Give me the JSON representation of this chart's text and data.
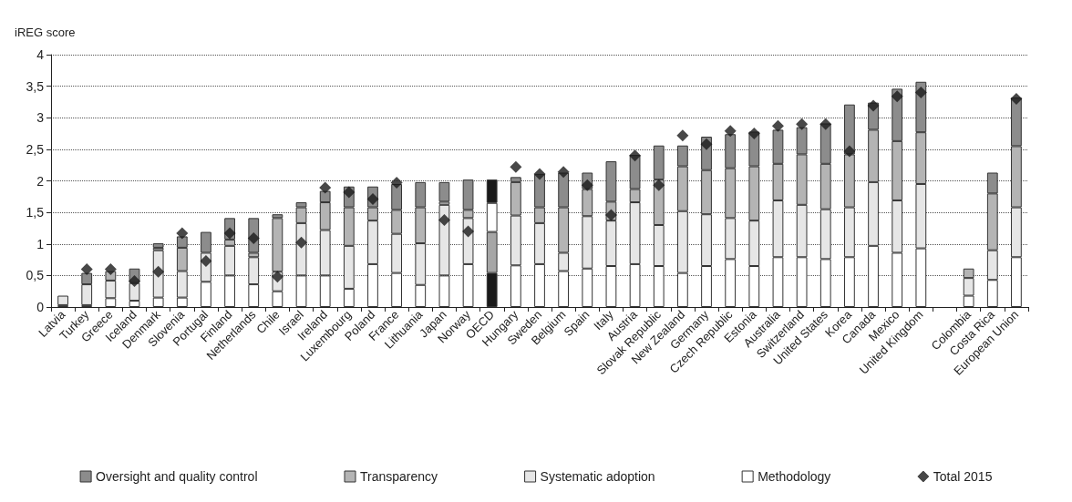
{
  "chart_data": {
    "type": "bar",
    "stacked": true,
    "ylabel": "iREG score",
    "categories": [
      "Latvia",
      "Turkey",
      "Greece",
      "Iceland",
      "Denmark",
      "Slovenia",
      "Portugal",
      "Finland",
      "Netherlands",
      "Chile",
      "Israel",
      "Ireland",
      "Luxembourg",
      "Poland",
      "France",
      "Lithuania",
      "Japan",
      "Norway",
      "OECD",
      "Hungary",
      "Sweden",
      "Belgium",
      "Spain",
      "Italy",
      "Austria",
      "Slovak Republic",
      "New Zealand",
      "Germany",
      "Czech Republic",
      "Estonia",
      "Australia",
      "Switzerland",
      "United States",
      "Korea",
      "Canada",
      "Mexico",
      "United Kingdom",
      null,
      "Colombia",
      "Costa Rica",
      "European Union"
    ],
    "series": [
      {
        "name": "Methodology",
        "color": "#ffffff",
        "values": [
          0.03,
          0.03,
          0.14,
          0.1,
          0.15,
          0.15,
          0.4,
          0.5,
          0.36,
          0.25,
          0.5,
          0.5,
          0.29,
          0.68,
          0.54,
          0.35,
          0.5,
          0.68,
          0.54,
          0.66,
          0.68,
          0.57,
          0.61,
          0.65,
          0.68,
          0.65,
          0.54,
          0.65,
          0.76,
          0.65,
          0.79,
          0.79,
          0.76,
          0.79,
          0.97,
          0.86,
          0.93,
          null,
          0.18,
          0.43,
          0.79
        ],
        "colors": [
          null,
          null,
          null,
          null,
          null,
          null,
          null,
          null,
          null,
          null,
          null,
          null,
          null,
          null,
          null,
          null,
          null,
          null,
          "#1a1a1a",
          null,
          null,
          null,
          null,
          null,
          null,
          null,
          null,
          null,
          null,
          null,
          null,
          null,
          null,
          null,
          null,
          null,
          null,
          null,
          null,
          null,
          null
        ]
      },
      {
        "name": "Systematic adoption",
        "color": "#e6e6e6",
        "values": [
          0.15,
          0.33,
          0.28,
          0.28,
          0.75,
          0.42,
          0.46,
          0.47,
          0.43,
          0.31,
          0.83,
          0.72,
          0.68,
          0.69,
          0.62,
          0.66,
          1.12,
          0.73,
          0.65,
          0.79,
          0.65,
          0.29,
          0.83,
          0.72,
          0.98,
          0.65,
          0.98,
          0.82,
          0.65,
          0.72,
          0.9,
          0.83,
          0.79,
          0.79,
          1.01,
          0.83,
          1.02,
          null,
          0.28,
          0.47,
          0.79
        ],
        "colors": [
          null,
          null,
          null,
          null,
          null,
          null,
          null,
          null,
          null,
          null,
          null,
          null,
          null,
          null,
          null,
          null,
          null,
          null,
          "#a6a6a6",
          null,
          null,
          null,
          null,
          null,
          null,
          null,
          null,
          null,
          null,
          null,
          null,
          null,
          null,
          null,
          null,
          null,
          null,
          null,
          null,
          null,
          null
        ]
      },
      {
        "name": "Transparency",
        "color": "#b4b4b4",
        "values": [
          null,
          null,
          0.15,
          null,
          0.04,
          0.37,
          null,
          0.1,
          0.07,
          0.85,
          0.25,
          0.44,
          0.61,
          0.21,
          0.38,
          0.57,
          0.05,
          0.13,
          0.46,
          0.53,
          0.25,
          0.72,
          0.43,
          0.3,
          0.21,
          0.72,
          0.71,
          0.7,
          0.79,
          0.86,
          0.58,
          0.8,
          0.72,
          0.84,
          0.83,
          0.94,
          0.82,
          null,
          0.15,
          0.9,
          0.97
        ],
        "colors": [
          null,
          null,
          null,
          null,
          null,
          null,
          null,
          null,
          null,
          null,
          null,
          null,
          null,
          null,
          null,
          null,
          null,
          null,
          "#ffffff",
          null,
          null,
          null,
          null,
          null,
          null,
          null,
          null,
          null,
          null,
          null,
          null,
          null,
          null,
          null,
          null,
          null,
          null,
          null,
          null,
          null,
          null
        ]
      },
      {
        "name": "Oversight and quality control",
        "color": "#8c8c8c",
        "values": [
          null,
          0.18,
          null,
          0.23,
          0.07,
          0.18,
          0.33,
          0.34,
          0.55,
          0.06,
          0.08,
          0.18,
          0.33,
          0.33,
          0.41,
          0.4,
          0.31,
          0.48,
          0.37,
          0.08,
          0.53,
          0.55,
          0.26,
          0.64,
          0.54,
          0.54,
          0.33,
          0.53,
          0.54,
          0.55,
          0.54,
          0.43,
          0.64,
          0.79,
          0.43,
          0.83,
          0.8,
          null,
          null,
          0.33,
          0.77
        ],
        "colors": [
          null,
          null,
          null,
          null,
          null,
          null,
          null,
          null,
          null,
          null,
          null,
          null,
          null,
          null,
          null,
          null,
          null,
          null,
          "#1a1a1a",
          null,
          null,
          null,
          null,
          null,
          null,
          null,
          null,
          null,
          null,
          null,
          null,
          null,
          null,
          null,
          null,
          null,
          null,
          null,
          null,
          null,
          null
        ]
      },
      {
        "name": "Total 2015",
        "type": "scatter",
        "marker": "diamond",
        "color": "#1a1a1a",
        "values": [
          null,
          0.6,
          0.6,
          0.41,
          0.56,
          1.17,
          0.73,
          1.17,
          1.09,
          0.48,
          1.02,
          1.89,
          1.82,
          1.71,
          1.97,
          null,
          1.38,
          1.2,
          null,
          2.22,
          2.11,
          2.14,
          1.93,
          1.46,
          2.4,
          1.93,
          2.72,
          2.58,
          2.79,
          2.75,
          2.87,
          2.9,
          2.9,
          2.47,
          3.19,
          3.34,
          3.4,
          null,
          null,
          null,
          3.3
        ]
      }
    ],
    "ylim": [
      0,
      4
    ],
    "yticks": [
      0,
      {
        "value": 0.5,
        "label": "0,5"
      },
      1,
      {
        "value": 1.5,
        "label": "1,5"
      },
      2,
      {
        "value": 2.5,
        "label": "2,5"
      },
      3,
      {
        "value": 3.5,
        "label": "3,5"
      },
      4
    ],
    "grid": "y",
    "legend": "bottom"
  }
}
